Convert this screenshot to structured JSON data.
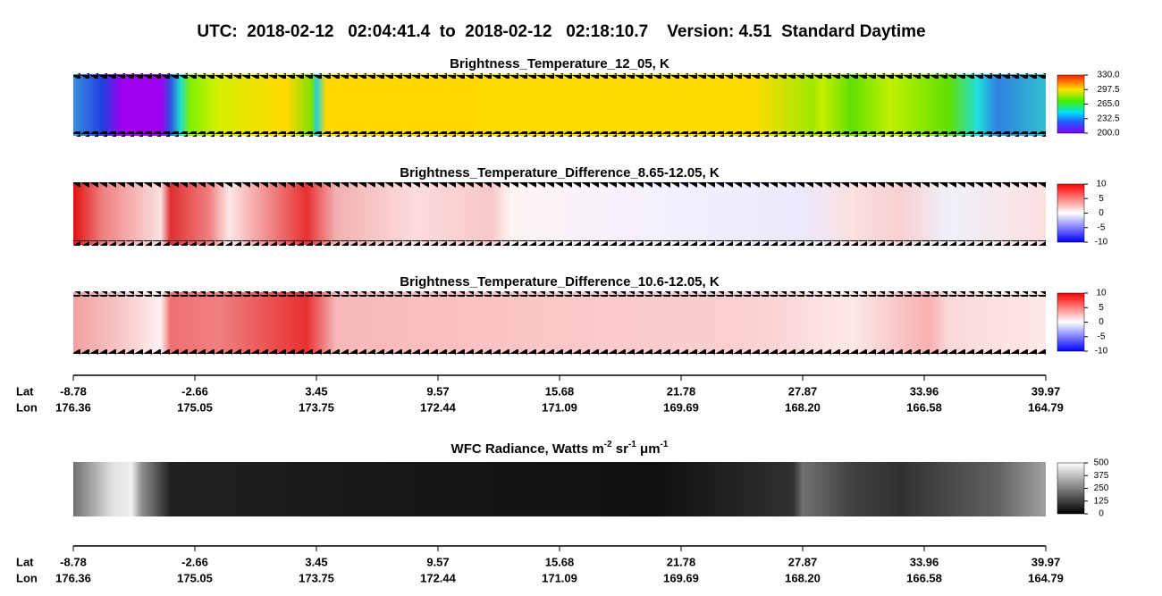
{
  "title": "UTC:  2018-02-12   02:04:41.4  to  2018-02-12   02:18:10.7    Version: 4.51  Standard Daytime",
  "panels": [
    {
      "title": "Brightness_Temperature_12_05, K",
      "colorbar_ticks": [
        {
          "value": 200,
          "label": "200.0"
        },
        {
          "value": 232.5,
          "label": "232.5"
        },
        {
          "value": 265,
          "label": "265.0"
        },
        {
          "value": 297.5,
          "label": "297.5"
        },
        {
          "value": 330,
          "label": "330.0"
        }
      ]
    },
    {
      "title": "Brightness_Temperature_Difference_8.65-12.05, K",
      "colorbar_ticks": [
        -10,
        -5,
        0,
        5,
        10
      ]
    },
    {
      "title": "Brightness_Temperature_Difference_10.6-12.05, K",
      "colorbar_ticks": [
        -10,
        -5,
        0,
        5,
        10
      ]
    },
    {
      "title_parts": [
        "WFC Radiance, Watts m",
        "-2",
        " sr",
        "-1",
        " μm",
        "-1"
      ],
      "colorbar_ticks": [
        0,
        125,
        250,
        375,
        500
      ]
    }
  ],
  "axes": [
    {
      "lat_label": "Lat",
      "lon_label": "Lon",
      "lat": [
        -8.78,
        -2.66,
        3.45,
        9.57,
        15.68,
        21.78,
        27.87,
        33.96,
        39.97
      ],
      "lon": [
        176.36,
        175.05,
        173.75,
        172.44,
        171.09,
        169.69,
        {
          "value": 168.2,
          "label": "168.20"
        },
        166.58,
        164.79
      ]
    },
    {
      "lat_label": "Lat",
      "lon_label": "Lon",
      "lat": [
        -8.78,
        -2.66,
        3.45,
        9.57,
        15.68,
        21.78,
        27.87,
        33.96,
        39.97
      ],
      "lon": [
        176.36,
        175.05,
        173.75,
        172.44,
        171.09,
        169.69,
        {
          "value": 168.2,
          "label": "168.20"
        },
        166.58,
        164.79
      ]
    }
  ]
}
